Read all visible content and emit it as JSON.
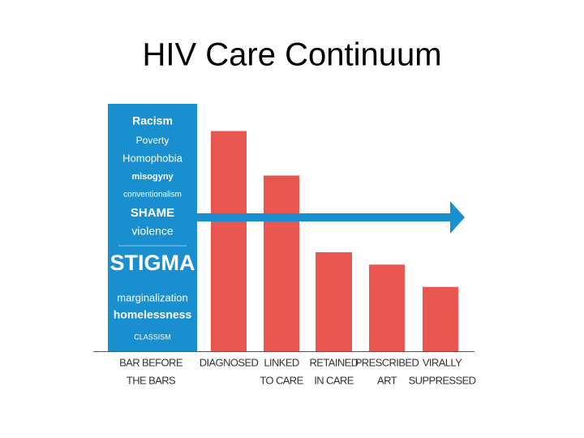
{
  "chart_data": {
    "type": "bar",
    "title": "HIV Care Continuum",
    "categories": [
      [
        "BAR BEFORE",
        "THE BARS"
      ],
      [
        "DIAGNOSED"
      ],
      [
        "LINKED",
        "TO CARE"
      ],
      [
        "RETAINED",
        "IN CARE"
      ],
      [
        "PRESCRIBED",
        "ART"
      ],
      [
        "VIRALLY",
        "SUPPRESSED"
      ]
    ],
    "values": [
      100,
      89,
      71,
      40,
      35,
      26
    ],
    "colors": [
      "#1a8fd0",
      "#e8564f",
      "#e8564f",
      "#e8564f",
      "#e8564f",
      "#e8564f"
    ],
    "ylim": [
      0,
      100
    ],
    "bar_words": [
      "Racism",
      "Poverty",
      "Homophobia",
      "misogyny",
      "conventionalism",
      "SHAME",
      "violence",
      "STIGMA",
      "marginalization",
      "homelessness",
      "CLASSISM"
    ]
  }
}
